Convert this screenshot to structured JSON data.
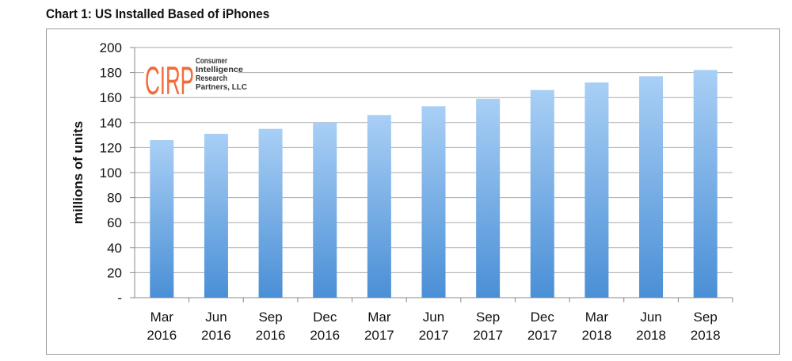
{
  "chart_data": {
    "type": "bar",
    "title": "Chart 1: US Installed Based of iPhones",
    "xlabel": "",
    "ylabel": "millions of units",
    "ylim": [
      0,
      200
    ],
    "yticks": [
      "-",
      "20",
      "40",
      "60",
      "80",
      "100",
      "120",
      "140",
      "160",
      "180",
      "200"
    ],
    "grid": true,
    "categories": [
      [
        "Mar",
        "2016"
      ],
      [
        "Jun",
        "2016"
      ],
      [
        "Sep",
        "2016"
      ],
      [
        "Dec",
        "2016"
      ],
      [
        "Mar",
        "2017"
      ],
      [
        "Jun",
        "2017"
      ],
      [
        "Sep",
        "2017"
      ],
      [
        "Dec",
        "2017"
      ],
      [
        "Mar",
        "2018"
      ],
      [
        "Jun",
        "2018"
      ],
      [
        "Sep",
        "2018"
      ]
    ],
    "values": [
      126,
      131,
      135,
      140,
      146,
      153,
      159,
      166,
      172,
      177,
      182
    ],
    "bar_color_top": "#a9cff5",
    "bar_color_bottom": "#4a8fd6"
  },
  "logo": {
    "mark": "CIRP",
    "lines": [
      "Consumer",
      "Intelligence",
      "Research",
      "Partners, LLC"
    ],
    "color": "#f26b3a"
  }
}
